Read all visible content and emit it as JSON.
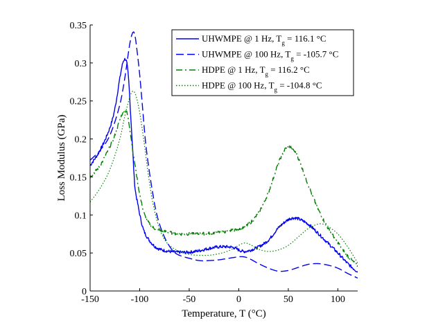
{
  "chart_data": {
    "type": "line",
    "title": "",
    "xlabel": "Temperature, T (°C)",
    "ylabel": "Loss Modulus (GPa)",
    "xlim": [
      -150,
      120
    ],
    "ylim": [
      0,
      0.35
    ],
    "xticks": [
      -150,
      -100,
      -50,
      0,
      50,
      100
    ],
    "yticks": [
      0,
      0.05,
      0.1,
      0.15,
      0.2,
      0.25,
      0.3,
      0.35
    ],
    "xtick_labels": [
      "-150",
      "-100",
      "-50",
      "0",
      "50",
      "100"
    ],
    "ytick_labels": [
      "0",
      "0.05",
      "0.1",
      "0.15",
      "0.2",
      "0.25",
      "0.3",
      "0.35"
    ],
    "grid": false,
    "legend_position": "top-right",
    "series": [
      {
        "name": "UHWMPE @ 1 Hz, Tg = 116.1 °C",
        "legend": {
          "prefix": "UHWMPE @ 1 Hz, T",
          "sub": "g",
          "suffix": " = 116.1 °C"
        },
        "color": "#0000ee",
        "dash": "solid",
        "noisy": true,
        "points": [
          [
            -150,
            0.165
          ],
          [
            -140,
            0.185
          ],
          [
            -130,
            0.215
          ],
          [
            -125,
            0.24
          ],
          [
            -120,
            0.28
          ],
          [
            -117,
            0.3
          ],
          [
            -115,
            0.305
          ],
          [
            -113,
            0.3
          ],
          [
            -111,
            0.275
          ],
          [
            -109,
            0.23
          ],
          [
            -107,
            0.185
          ],
          [
            -105,
            0.14
          ],
          [
            -102,
            0.115
          ],
          [
            -99,
            0.095
          ],
          [
            -96,
            0.08
          ],
          [
            -92,
            0.07
          ],
          [
            -88,
            0.063
          ],
          [
            -84,
            0.058
          ],
          [
            -80,
            0.055
          ],
          [
            -70,
            0.052
          ],
          [
            -60,
            0.051
          ],
          [
            -50,
            0.051
          ],
          [
            -40,
            0.053
          ],
          [
            -30,
            0.056
          ],
          [
            -20,
            0.058
          ],
          [
            -10,
            0.058
          ],
          [
            -5,
            0.057
          ],
          [
            0,
            0.054
          ],
          [
            5,
            0.052
          ],
          [
            10,
            0.053
          ],
          [
            20,
            0.058
          ],
          [
            30,
            0.067
          ],
          [
            40,
            0.083
          ],
          [
            50,
            0.094
          ],
          [
            55,
            0.096
          ],
          [
            60,
            0.095
          ],
          [
            70,
            0.088
          ],
          [
            80,
            0.076
          ],
          [
            90,
            0.063
          ],
          [
            100,
            0.05
          ],
          [
            110,
            0.036
          ],
          [
            120,
            0.025
          ]
        ]
      },
      {
        "name": "UHWMPE @ 100 Hz, Tg = -105.7 °C",
        "legend": {
          "prefix": "UHWMPE @ 100 Hz, T",
          "sub": "g",
          "suffix": " = -105.7 °C"
        },
        "color": "#0000ee",
        "dash": "dashed",
        "noisy": false,
        "points": [
          [
            -150,
            0.172
          ],
          [
            -140,
            0.185
          ],
          [
            -130,
            0.205
          ],
          [
            -120,
            0.245
          ],
          [
            -115,
            0.28
          ],
          [
            -110,
            0.325
          ],
          [
            -107,
            0.34
          ],
          [
            -105,
            0.338
          ],
          [
            -103,
            0.32
          ],
          [
            -100,
            0.285
          ],
          [
            -97,
            0.24
          ],
          [
            -94,
            0.195
          ],
          [
            -90,
            0.155
          ],
          [
            -87,
            0.13
          ],
          [
            -84,
            0.108
          ],
          [
            -80,
            0.088
          ],
          [
            -75,
            0.071
          ],
          [
            -70,
            0.059
          ],
          [
            -65,
            0.051
          ],
          [
            -60,
            0.047
          ],
          [
            -50,
            0.043
          ],
          [
            -40,
            0.04
          ],
          [
            -30,
            0.04
          ],
          [
            -20,
            0.041
          ],
          [
            -10,
            0.043
          ],
          [
            0,
            0.045
          ],
          [
            5,
            0.045
          ],
          [
            10,
            0.043
          ],
          [
            20,
            0.036
          ],
          [
            30,
            0.03
          ],
          [
            40,
            0.026
          ],
          [
            50,
            0.027
          ],
          [
            60,
            0.031
          ],
          [
            70,
            0.035
          ],
          [
            80,
            0.036
          ],
          [
            90,
            0.034
          ],
          [
            100,
            0.03
          ],
          [
            110,
            0.023
          ],
          [
            120,
            0.017
          ]
        ]
      },
      {
        "name": "HDPE @ 1 Hz, Tg = 116.2 °C",
        "legend": {
          "prefix": "HDPE @ 1 Hz, T",
          "sub": "g",
          "suffix": " = 116.2 °C"
        },
        "color": "#008000",
        "dash": "dashdot",
        "noisy": true,
        "points": [
          [
            -150,
            0.15
          ],
          [
            -140,
            0.165
          ],
          [
            -130,
            0.19
          ],
          [
            -125,
            0.205
          ],
          [
            -120,
            0.225
          ],
          [
            -117,
            0.235
          ],
          [
            -115,
            0.238
          ],
          [
            -113,
            0.235
          ],
          [
            -111,
            0.222
          ],
          [
            -109,
            0.205
          ],
          [
            -107,
            0.185
          ],
          [
            -104,
            0.16
          ],
          [
            -101,
            0.135
          ],
          [
            -98,
            0.115
          ],
          [
            -95,
            0.1
          ],
          [
            -91,
            0.09
          ],
          [
            -87,
            0.084
          ],
          [
            -80,
            0.08
          ],
          [
            -70,
            0.077
          ],
          [
            -60,
            0.075
          ],
          [
            -50,
            0.075
          ],
          [
            -40,
            0.075
          ],
          [
            -30,
            0.076
          ],
          [
            -20,
            0.077
          ],
          [
            -10,
            0.079
          ],
          [
            0,
            0.082
          ],
          [
            10,
            0.088
          ],
          [
            20,
            0.103
          ],
          [
            30,
            0.13
          ],
          [
            40,
            0.168
          ],
          [
            47,
            0.187
          ],
          [
            51,
            0.19
          ],
          [
            55,
            0.186
          ],
          [
            60,
            0.175
          ],
          [
            70,
            0.14
          ],
          [
            80,
            0.108
          ],
          [
            90,
            0.083
          ],
          [
            100,
            0.064
          ],
          [
            110,
            0.046
          ],
          [
            120,
            0.033
          ]
        ]
      },
      {
        "name": "HDPE @ 100 Hz, Tg = -104.8 °C",
        "legend": {
          "prefix": "HDPE @ 100 Hz, T",
          "sub": "g",
          "suffix": " = -104.8 °C"
        },
        "color": "#008000",
        "dash": "dotted",
        "noisy": false,
        "points": [
          [
            -150,
            0.117
          ],
          [
            -140,
            0.135
          ],
          [
            -130,
            0.16
          ],
          [
            -120,
            0.2
          ],
          [
            -115,
            0.23
          ],
          [
            -110,
            0.255
          ],
          [
            -107,
            0.263
          ],
          [
            -104,
            0.258
          ],
          [
            -100,
            0.235
          ],
          [
            -96,
            0.2
          ],
          [
            -92,
            0.16
          ],
          [
            -88,
            0.125
          ],
          [
            -84,
            0.1
          ],
          [
            -80,
            0.082
          ],
          [
            -75,
            0.068
          ],
          [
            -70,
            0.06
          ],
          [
            -60,
            0.052
          ],
          [
            -50,
            0.048
          ],
          [
            -40,
            0.047
          ],
          [
            -30,
            0.047
          ],
          [
            -20,
            0.049
          ],
          [
            -10,
            0.053
          ],
          [
            0,
            0.06
          ],
          [
            5,
            0.063
          ],
          [
            10,
            0.062
          ],
          [
            20,
            0.055
          ],
          [
            30,
            0.052
          ],
          [
            40,
            0.054
          ],
          [
            50,
            0.06
          ],
          [
            60,
            0.071
          ],
          [
            70,
            0.082
          ],
          [
            80,
            0.088
          ],
          [
            85,
            0.088
          ],
          [
            90,
            0.085
          ],
          [
            100,
            0.075
          ],
          [
            110,
            0.058
          ],
          [
            120,
            0.037
          ]
        ]
      }
    ]
  }
}
